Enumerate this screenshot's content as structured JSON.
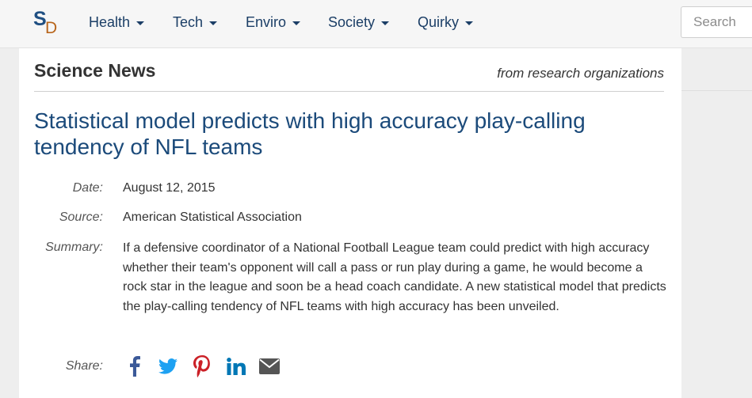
{
  "nav": {
    "logo_s": "S",
    "logo_d": "D",
    "items": [
      {
        "label": "Health"
      },
      {
        "label": "Tech"
      },
      {
        "label": "Enviro"
      },
      {
        "label": "Society"
      },
      {
        "label": "Quirky"
      }
    ],
    "search_placeholder": "Search"
  },
  "section": {
    "title": "Science News",
    "subtitle": "from research organizations"
  },
  "article": {
    "headline": "Statistical model predicts with high accuracy play-calling tendency of NFL teams",
    "date_label": "Date:",
    "date": "August 12, 2015",
    "source_label": "Source:",
    "source": "American Statistical Association",
    "summary_label": "Summary:",
    "summary": "If a defensive coordinator of a National Football League team could predict with high accuracy whether their team's opponent will call a pass or run play during a game, he would become a rock star in the league and soon be a head coach candidate. A new statistical model that predicts the play-calling tendency of NFL teams with high accuracy has been unveiled.",
    "share_label": "Share:"
  },
  "share_icons": [
    {
      "name": "facebook-icon",
      "color": "#3b5998"
    },
    {
      "name": "twitter-icon",
      "color": "#1da1f2"
    },
    {
      "name": "pinterest-icon",
      "color": "#cb2027"
    },
    {
      "name": "linkedin-icon",
      "color": "#0077b5"
    },
    {
      "name": "email-icon",
      "color": "#555555"
    }
  ]
}
